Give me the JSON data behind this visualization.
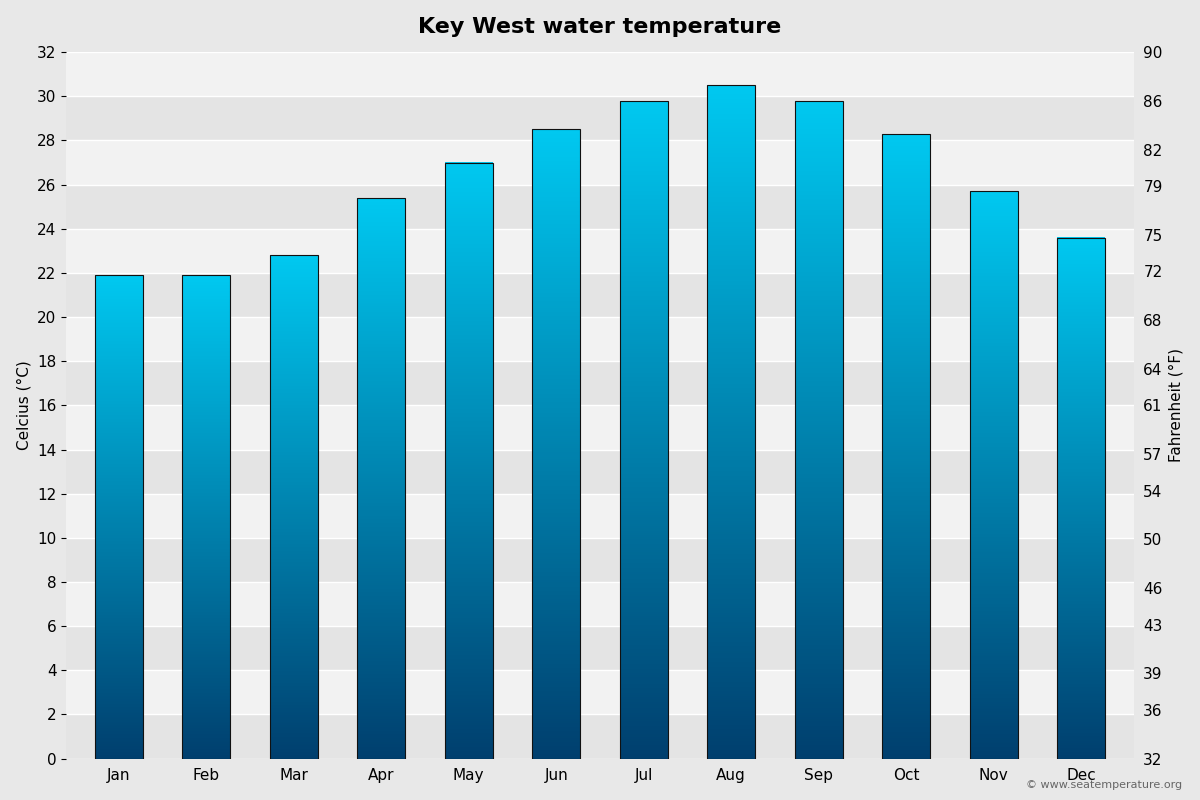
{
  "title": "Key West water temperature",
  "months": [
    "Jan",
    "Feb",
    "Mar",
    "Apr",
    "May",
    "Jun",
    "Jul",
    "Aug",
    "Sep",
    "Oct",
    "Nov",
    "Dec"
  ],
  "temps_c": [
    21.9,
    21.9,
    22.8,
    25.4,
    27.0,
    28.5,
    29.8,
    30.5,
    29.8,
    28.3,
    25.7,
    23.6
  ],
  "ylabel_left": "Celcius (°C)",
  "ylabel_right": "Fahrenheit (°F)",
  "ylim_c": [
    0,
    32
  ],
  "yticks_c": [
    0,
    2,
    4,
    6,
    8,
    10,
    12,
    14,
    16,
    18,
    20,
    22,
    24,
    26,
    28,
    30,
    32
  ],
  "yticks_f": [
    32,
    36,
    39,
    43,
    46,
    50,
    54,
    57,
    61,
    64,
    68,
    72,
    75,
    79,
    82,
    86,
    90
  ],
  "background_color": "#e8e8e8",
  "plot_bg_color_light": "#f2f2f2",
  "plot_bg_color_dark": "#e4e4e4",
  "bar_color_top": "#00c8f0",
  "bar_color_bottom": "#003f6e",
  "bar_border_color": "#111111",
  "grid_color": "#ffffff",
  "copyright_text": "© www.seatemperature.org",
  "title_fontsize": 16,
  "axis_label_fontsize": 11,
  "tick_fontsize": 11,
  "bar_width": 0.55
}
